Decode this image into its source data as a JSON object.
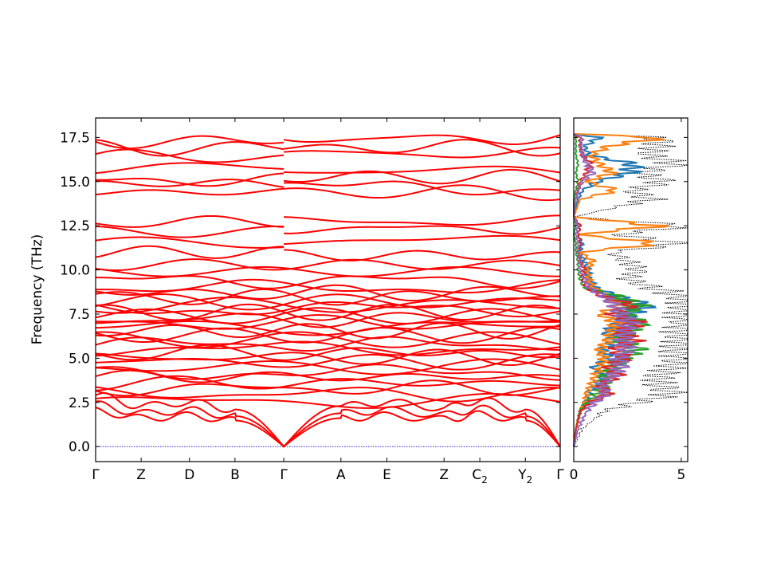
{
  "colors": {
    "band": "#ff0000",
    "zero_line": "#0000cc",
    "total_dos": "#000000",
    "pdos": [
      "#1f77b4",
      "#ff7f0e",
      "#2ca02c",
      "#d62728",
      "#9467bd"
    ]
  },
  "chart_data": [
    {
      "type": "line",
      "subtype": "phonon-band-structure",
      "title": "",
      "ylabel": "Frequency (THz)",
      "xlabel": "",
      "ylim": [
        -0.85,
        18.6
      ],
      "yticks": [
        0.0,
        2.5,
        5.0,
        7.5,
        10.0,
        12.5,
        15.0,
        17.5
      ],
      "ytick_labels": [
        "0.0",
        "2.5",
        "5.0",
        "7.5",
        "10.0",
        "12.5",
        "15.0",
        "17.5"
      ],
      "kpath": [
        {
          "label": "Γ",
          "sub": "",
          "x": 0.0
        },
        {
          "label": "Z",
          "sub": "",
          "x": 0.098
        },
        {
          "label": "D",
          "sub": "",
          "x": 0.202
        },
        {
          "label": "B",
          "sub": "",
          "x": 0.3
        },
        {
          "label": "Γ",
          "sub": "",
          "x": 0.405
        },
        {
          "label": "A",
          "sub": "",
          "x": 0.528
        },
        {
          "label": "E",
          "sub": "",
          "x": 0.627
        },
        {
          "label": "Z",
          "sub": "",
          "x": 0.75
        },
        {
          "label": "C",
          "sub": "2",
          "x": 0.827
        },
        {
          "label": "Y",
          "sub": "2",
          "x": 0.925
        },
        {
          "label": "Γ",
          "sub": "",
          "x": 1.0
        }
      ],
      "segment_breaks": [
        0.405
      ],
      "acoustic_zone_boundary_THz": [
        2.9,
        2.3,
        2.5,
        2.1,
        0.0,
        2.3,
        2.5,
        2.2,
        2.6,
        2.1,
        0.0
      ],
      "optical_band_levels_THz": [
        2.55,
        3.0,
        3.3,
        3.6,
        3.95,
        4.2,
        4.5,
        4.8,
        5.05,
        5.3,
        5.55,
        5.8,
        6.05,
        6.3,
        6.55,
        6.75,
        7.0,
        7.2,
        7.4,
        7.6,
        7.8,
        8.0,
        8.2,
        8.45,
        8.7,
        9.0,
        9.4,
        9.9,
        10.3,
        11.0,
        11.5,
        12.2,
        12.7,
        14.4,
        14.9,
        15.2,
        15.8,
        16.4,
        16.9,
        17.3
      ],
      "series": [
        {
          "values": []
        }
      ]
    },
    {
      "type": "line",
      "subtype": "phonon-dos",
      "title": "",
      "xlim": [
        0,
        5.3
      ],
      "xticks": [
        0,
        5
      ],
      "xtick_labels": [
        "0",
        "5"
      ],
      "ylim": [
        -0.85,
        18.6
      ],
      "frequency_grid_THz": [
        0.0,
        1.0,
        2.0,
        2.5,
        3.0,
        3.5,
        4.0,
        4.5,
        5.0,
        5.5,
        6.0,
        6.5,
        7.0,
        7.5,
        8.0,
        8.5,
        9.0,
        9.5,
        10.0,
        10.5,
        11.0,
        11.5,
        12.0,
        12.5,
        13.0,
        14.0,
        14.5,
        15.0,
        15.5,
        16.0,
        16.5,
        17.0,
        17.5,
        17.7
      ],
      "series": [
        {
          "values": [
            0.0,
            0.4,
            1.4,
            3.0,
            4.6,
            4.0,
            3.9,
            4.6,
            5.1,
            4.8,
            5.2,
            5.0,
            5.4,
            5.1,
            5.5,
            5.2,
            3.6,
            2.5,
            3.0,
            2.5,
            1.8,
            5.1,
            2.0,
            5.2,
            0.0,
            3.6,
            2.7,
            4.2,
            3.1,
            4.8,
            3.5,
            3.9,
            4.0,
            0.0
          ]
        },
        {
          "values": [
            0.0,
            0.1,
            0.3,
            0.6,
            0.7,
            1.0,
            1.4,
            0.9,
            1.7,
            1.3,
            2.0,
            1.5,
            2.2,
            2.6,
            3.4,
            2.0,
            1.0,
            0.7,
            0.7,
            0.5,
            0.3,
            0.4,
            0.2,
            0.3,
            0.0,
            0.2,
            0.4,
            1.1,
            2.6,
            2.8,
            0.7,
            0.5,
            1.2,
            0.0
          ]
        },
        {
          "values": [
            0.0,
            0.1,
            0.3,
            0.5,
            0.6,
            0.8,
            1.0,
            1.3,
            1.4,
            1.2,
            1.6,
            1.8,
            2.0,
            1.2,
            2.2,
            1.5,
            0.9,
            0.7,
            0.6,
            0.9,
            0.3,
            4.0,
            0.2,
            4.0,
            0.0,
            0.3,
            2.0,
            0.6,
            1.8,
            1.2,
            0.8,
            1.6,
            4.1,
            0.0
          ]
        },
        {
          "values": [
            0.0,
            0.1,
            0.3,
            0.6,
            1.1,
            1.5,
            1.4,
            1.9,
            2.3,
            3.0,
            2.2,
            2.5,
            3.1,
            2.3,
            3.0,
            2.1,
            0.5,
            0.3,
            0.2,
            0.2,
            0.1,
            0.1,
            0.0,
            0.1,
            0.0,
            0.0,
            0.1,
            0.2,
            0.1,
            0.2,
            0.1,
            0.1,
            0.1,
            0.0
          ]
        },
        {
          "values": [
            0.0,
            0.1,
            0.3,
            0.8,
            1.6,
            1.2,
            2.1,
            1.6,
            2.4,
            1.9,
            2.8,
            2.2,
            3.0,
            1.8,
            2.7,
            1.4,
            0.6,
            0.4,
            0.5,
            0.3,
            0.2,
            0.3,
            0.2,
            0.3,
            0.0,
            0.1,
            0.2,
            0.3,
            0.6,
            0.8,
            0.4,
            0.3,
            0.3,
            0.0
          ]
        },
        {
          "values": [
            0.0,
            0.2,
            0.6,
            1.0,
            1.5,
            1.3,
            1.8,
            2.2,
            2.1,
            2.5,
            2.3,
            2.4,
            2.6,
            2.2,
            1.9,
            1.4,
            0.7,
            0.5,
            0.3,
            0.3,
            0.2,
            0.2,
            0.1,
            0.2,
            0.0,
            0.1,
            0.2,
            0.4,
            0.9,
            0.6,
            0.4,
            0.3,
            0.4,
            0.0
          ]
        }
      ]
    }
  ]
}
